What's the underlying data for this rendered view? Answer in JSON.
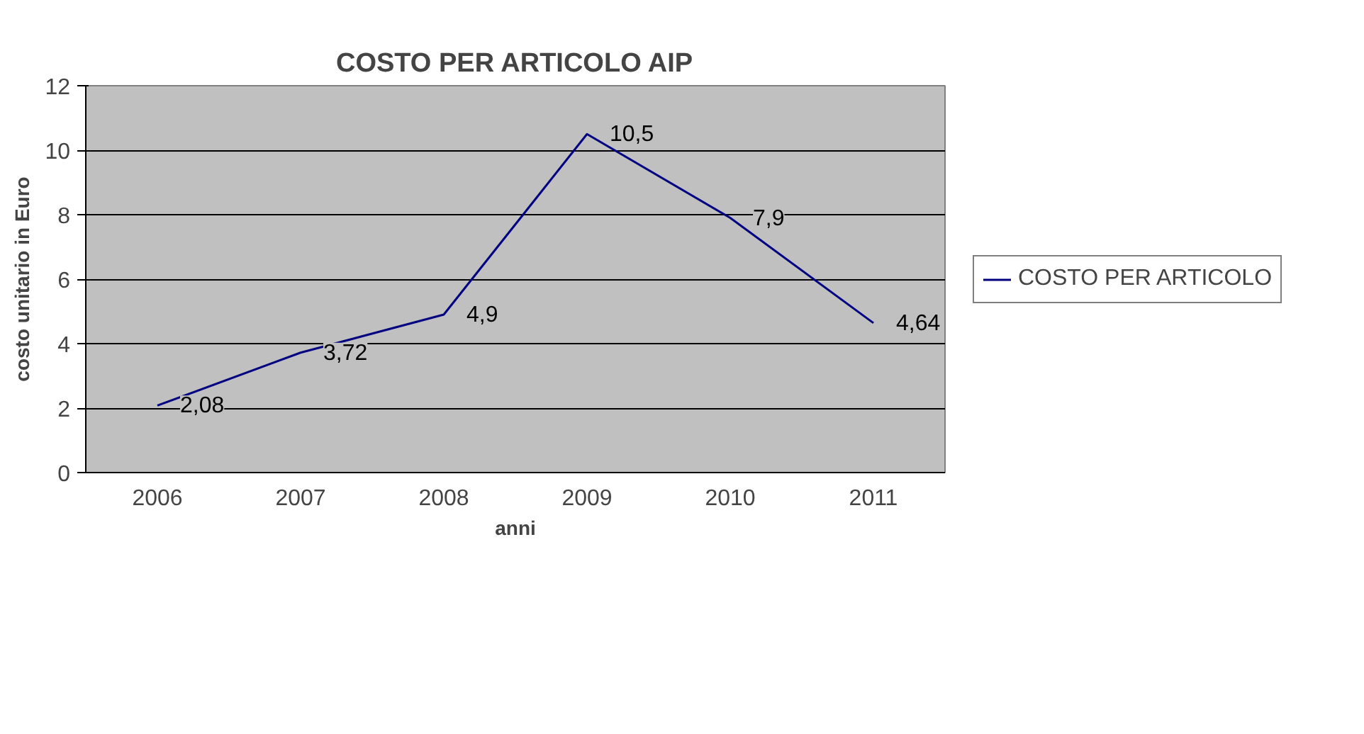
{
  "chart_data": {
    "type": "line",
    "title": "COSTO PER ARTICOLO AIP",
    "xlabel": "anni",
    "ylabel": "costo unitario in Euro",
    "categories": [
      "2006",
      "2007",
      "2008",
      "2009",
      "2010",
      "2011"
    ],
    "series": [
      {
        "name": "COSTO PER ARTICOLO",
        "color": "#000080",
        "values": [
          2.08,
          3.72,
          4.9,
          10.5,
          7.9,
          4.64
        ],
        "value_labels": [
          "2,08",
          "3,72",
          "4,9",
          "10,5",
          "7,9",
          "4,64"
        ]
      }
    ],
    "ylim": [
      0,
      12
    ],
    "yticks": [
      0,
      2,
      4,
      6,
      8,
      10,
      12
    ],
    "grid": "y",
    "legend": "right",
    "marker": "none",
    "line_style": "solid"
  }
}
